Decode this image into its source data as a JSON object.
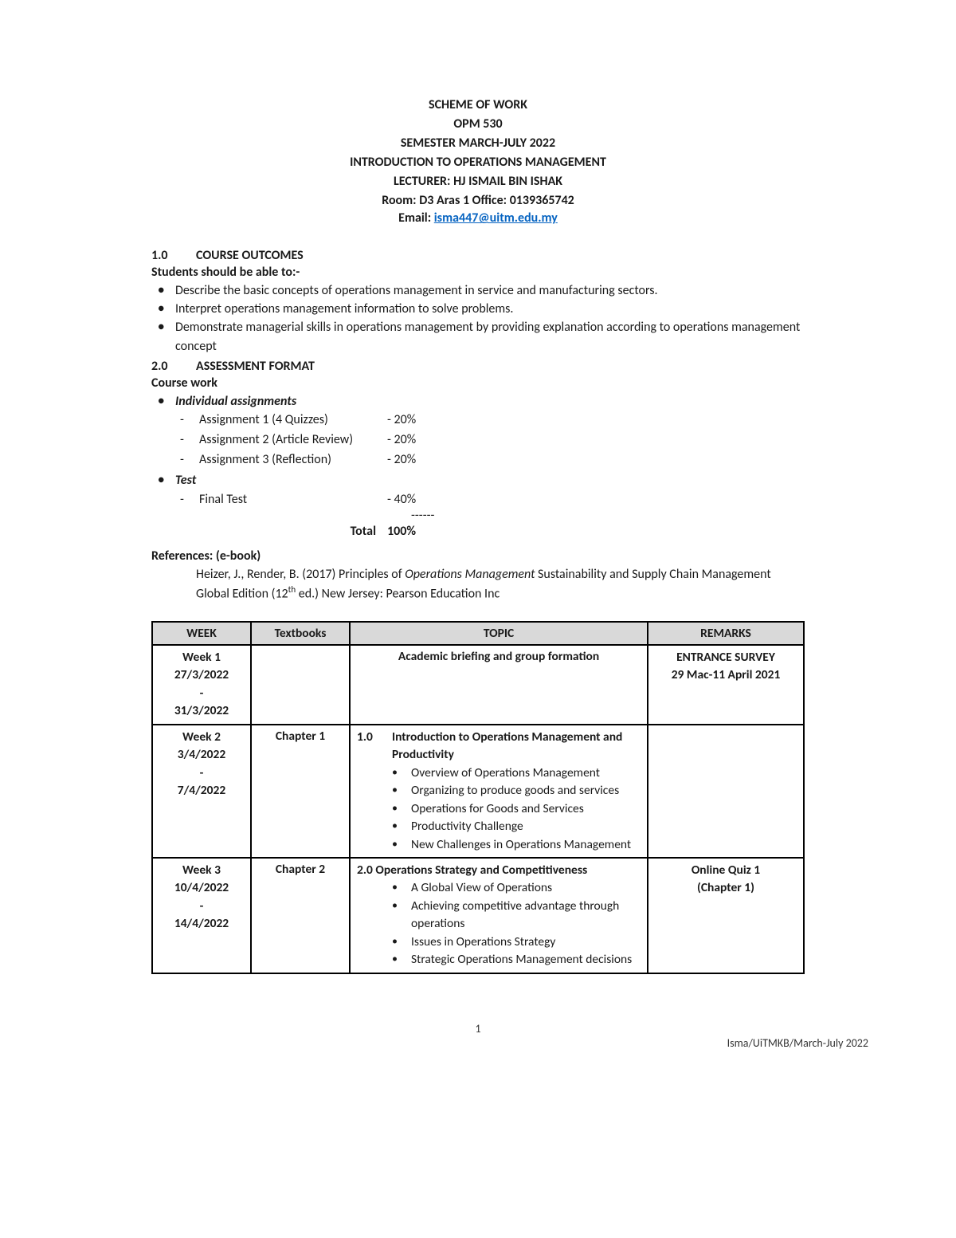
{
  "header": {
    "line1": "SCHEME OF WORK",
    "line2": "OPM 530",
    "line3": "SEMESTER MARCH-JULY  2022",
    "line4": "INTRODUCTION TO OPERATIONS MANAGEMENT",
    "line5": "LECTURER: HJ ISMAIL BIN ISHAK",
    "line6": "Room: D3 Aras 1 Office: 0139365742",
    "email_label": "Email: ",
    "email": "isma447@uitm.edu.my"
  },
  "section1": {
    "num": "1.0",
    "title": "COURSE OUTCOMES",
    "intro": "Students should be able to:-",
    "items": [
      "Describe the basic concepts of operations management in service and manufacturing sectors.",
      "Interpret operations management information to solve problems.",
      "Demonstrate managerial skills in operations management by providing explanation according to operations management concept"
    ]
  },
  "section2": {
    "num": "2.0",
    "title": "ASSESSMENT FORMAT",
    "coursework_label": "Course work",
    "individual_label": "Individual assignments",
    "assignments": [
      {
        "name": "Assignment 1 (4 Quizzes)",
        "pct": "- 20%"
      },
      {
        "name": "Assignment 2 (Article Review)",
        "pct": "- 20%"
      },
      {
        "name": "Assignment 3 (Reflection)",
        "pct": "- 20%"
      }
    ],
    "test_label": "Test",
    "tests": [
      {
        "name": "Final Test",
        "pct": "- 40%"
      }
    ],
    "divider": "------",
    "total_label": "Total",
    "total_value": "100%"
  },
  "references": {
    "title": "References: (e-book)",
    "pre": "Heizer, J., Render, B. (2017) Principles of ",
    "italic": "Operations Management",
    "post": " Sustainability and Supply Chain Management Global Edition (12",
    "sup": "th",
    "post2": "  ed.) New Jersey: Pearson Education Inc"
  },
  "table": {
    "headers": {
      "week": "WEEK",
      "textbooks": "Textbooks",
      "topic": "TOPIC",
      "remarks": "REMARKS"
    },
    "rows": [
      {
        "week_lines": [
          "Week 1",
          "27/3/2022",
          "-",
          "31/3/2022"
        ],
        "textbook": "",
        "topic_center": "Academic briefing and group formation",
        "remarks_lines": [
          "ENTRANCE SURVEY",
          "29 Mac-11 April 2021"
        ]
      },
      {
        "week_lines": [
          "Week 2",
          "",
          "3/4/2022",
          "-",
          "7/4/2022"
        ],
        "textbook": "Chapter 1",
        "topic_num": "1.0",
        "topic_title": "Introduction to Operations Management and Productivity",
        "subpoints": [
          "Overview of Operations Management",
          "Organizing to produce goods and services",
          "Operations for Goods and Services",
          "Productivity Challenge",
          "New Challenges in Operations Management"
        ],
        "remarks_lines": []
      },
      {
        "week_lines": [
          "Week 3",
          "",
          "10/4/2022",
          "-",
          "14/4/2022"
        ],
        "textbook": "Chapter 2",
        "topic_num_inline": "2.0",
        "topic_title_inline": "Operations Strategy and Competitiveness",
        "subpoints": [
          "A Global View of Operations",
          "Achieving competitive advantage through operations",
          "Issues in Operations Strategy",
          "Strategic Operations Management decisions"
        ],
        "remarks_lines": [
          "Online Quiz 1",
          "(Chapter 1)"
        ]
      }
    ]
  },
  "footer": {
    "page": "1",
    "right": "Isma/UiTMKB/March-July 2022"
  }
}
